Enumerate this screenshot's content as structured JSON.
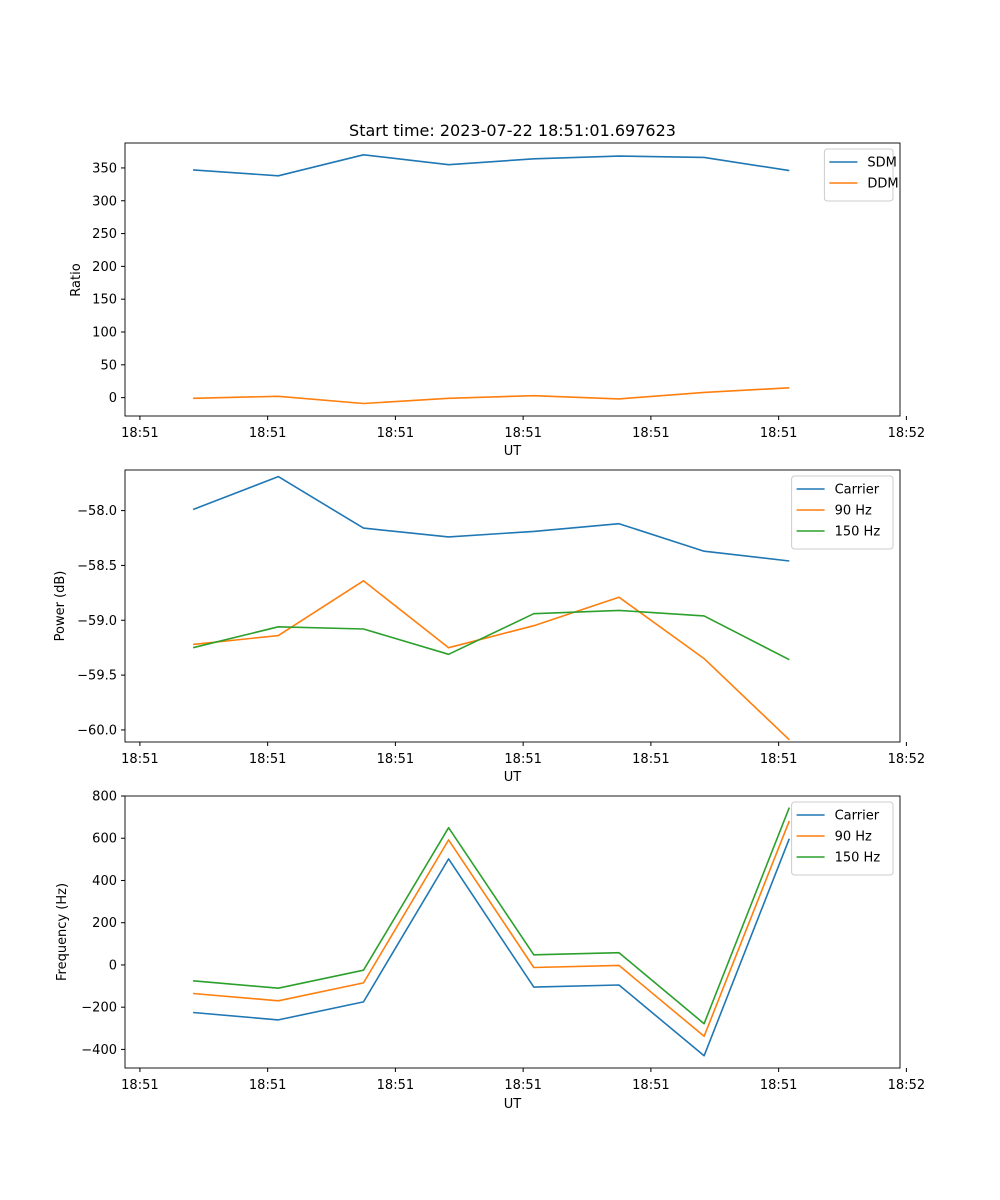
{
  "chart_data": [
    {
      "type": "line",
      "title": "Start time: 2023-07-22 18:51:01.697623",
      "xlabel": "UT",
      "ylabel": "Ratio",
      "x": [
        1,
        2,
        3,
        4,
        5,
        6,
        7,
        8
      ],
      "xlim": [
        0.2,
        9.3
      ],
      "x_ticks": [
        0.375,
        1.875,
        3.375,
        4.875,
        6.375,
        7.875,
        9.375
      ],
      "x_tick_labels": [
        "18:51",
        "18:51",
        "18:51",
        "18:51",
        "18:51",
        "18:51",
        "18:52"
      ],
      "ylim": [
        -28,
        388
      ],
      "y_ticks": [
        0,
        50,
        100,
        150,
        200,
        250,
        300,
        350
      ],
      "y_tick_labels": [
        "0",
        "50",
        "100",
        "150",
        "200",
        "250",
        "300",
        "350"
      ],
      "legend_position": "top-right",
      "series": [
        {
          "name": "SDM",
          "color": "#1f77b4",
          "values": [
            347,
            338,
            370,
            355,
            364,
            368,
            366,
            346
          ]
        },
        {
          "name": "DDM",
          "color": "#ff7f0e",
          "values": [
            -1,
            2,
            -9,
            -1,
            3,
            -2,
            8,
            15
          ]
        }
      ]
    },
    {
      "type": "line",
      "title": "",
      "xlabel": "UT",
      "ylabel": "Power (dB)",
      "x": [
        1,
        2,
        3,
        4,
        5,
        6,
        7,
        8
      ],
      "xlim": [
        0.2,
        9.3
      ],
      "x_ticks": [
        0.375,
        1.875,
        3.375,
        4.875,
        6.375,
        7.875,
        9.375
      ],
      "x_tick_labels": [
        "18:51",
        "18:51",
        "18:51",
        "18:51",
        "18:51",
        "18:51",
        "18:52"
      ],
      "ylim": [
        -60.11,
        -57.63
      ],
      "y_ticks": [
        -58.0,
        -58.5,
        -59.0,
        -59.5,
        -60.0
      ],
      "y_tick_labels": [
        "−58.0",
        "−58.5",
        "−59.0",
        "−59.5",
        "−60.0"
      ],
      "legend_position": "top-right",
      "series": [
        {
          "name": "Carrier",
          "color": "#1f77b4",
          "values": [
            -57.99,
            -57.69,
            -58.16,
            -58.24,
            -58.19,
            -58.12,
            -58.37,
            -58.46
          ]
        },
        {
          "name": "90 Hz",
          "color": "#ff7f0e",
          "values": [
            -59.22,
            -59.14,
            -58.64,
            -59.25,
            -59.05,
            -58.79,
            -59.35,
            -60.09
          ]
        },
        {
          "name": "150 Hz",
          "color": "#2ca02c",
          "values": [
            -59.25,
            -59.06,
            -59.08,
            -59.31,
            -58.94,
            -58.91,
            -58.96,
            -59.36
          ]
        }
      ]
    },
    {
      "type": "line",
      "title": "",
      "xlabel": "UT",
      "ylabel": "Frequency (Hz)",
      "x": [
        1,
        2,
        3,
        4,
        5,
        6,
        7,
        8
      ],
      "xlim": [
        0.2,
        9.3
      ],
      "x_ticks": [
        0.375,
        1.875,
        3.375,
        4.875,
        6.375,
        7.875,
        9.375
      ],
      "x_tick_labels": [
        "18:51",
        "18:51",
        "18:51",
        "18:51",
        "18:51",
        "18:51",
        "18:52"
      ],
      "ylim": [
        -488,
        800
      ],
      "y_ticks": [
        -400,
        -200,
        0,
        200,
        400,
        600,
        800
      ],
      "y_tick_labels": [
        "−400",
        "−200",
        "0",
        "200",
        "400",
        "600",
        "800"
      ],
      "legend_position": "top-right",
      "series": [
        {
          "name": "Carrier",
          "color": "#1f77b4",
          "values": [
            -225,
            -260,
            -175,
            502,
            -105,
            -95,
            -430,
            598
          ]
        },
        {
          "name": "90 Hz",
          "color": "#ff7f0e",
          "values": [
            -135,
            -170,
            -85,
            592,
            -12,
            -2,
            -338,
            682
          ]
        },
        {
          "name": "150 Hz",
          "color": "#2ca02c",
          "values": [
            -75,
            -110,
            -25,
            650,
            48,
            58,
            -278,
            745
          ]
        }
      ]
    }
  ]
}
